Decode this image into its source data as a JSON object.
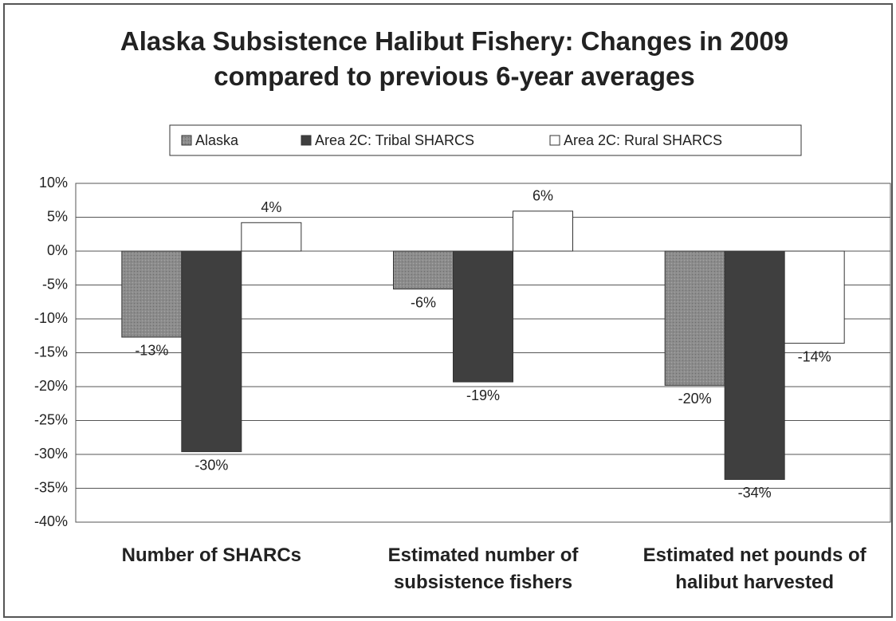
{
  "chart_data": {
    "type": "bar",
    "title": "Alaska Subsistence Halibut Fishery:  Changes in 2009 compared to previous 6-year averages",
    "categories": [
      "Number of SHARCs",
      "Estimated number of subsistence fishers",
      "Estimated net pounds of halibut harvested"
    ],
    "series": [
      {
        "name": "Alaska",
        "color": "#8c8c8c",
        "values": [
          -12.7,
          -5.6,
          -19.8
        ],
        "value_labels": [
          "-13%",
          "-6%",
          "-20%"
        ]
      },
      {
        "name": "Area 2C: Tribal SHARCS",
        "color": "#3f3f3f",
        "values": [
          -29.6,
          -19.3,
          -33.7
        ],
        "value_labels": [
          "-30%",
          "-19%",
          "-34%"
        ]
      },
      {
        "name": "Area 2C: Rural SHARCS",
        "color": "#ffffff",
        "values": [
          4.2,
          5.9,
          -13.6
        ],
        "value_labels": [
          "4%",
          "6%",
          "-14%"
        ]
      }
    ],
    "ylim": [
      -40,
      10
    ],
    "yticks": [
      {
        "value": 10,
        "label": "10%"
      },
      {
        "value": 5,
        "label": "5%"
      },
      {
        "value": 0,
        "label": "0%"
      },
      {
        "value": -5,
        "label": "-5%"
      },
      {
        "value": -10,
        "label": "-10%"
      },
      {
        "value": -15,
        "label": "-15%"
      },
      {
        "value": -20,
        "label": "-20%"
      },
      {
        "value": -25,
        "label": "-25%"
      },
      {
        "value": -30,
        "label": "-30%"
      },
      {
        "value": -35,
        "label": "-35%"
      },
      {
        "value": -40,
        "label": "-40%"
      }
    ],
    "grid": true,
    "legend": "top"
  }
}
